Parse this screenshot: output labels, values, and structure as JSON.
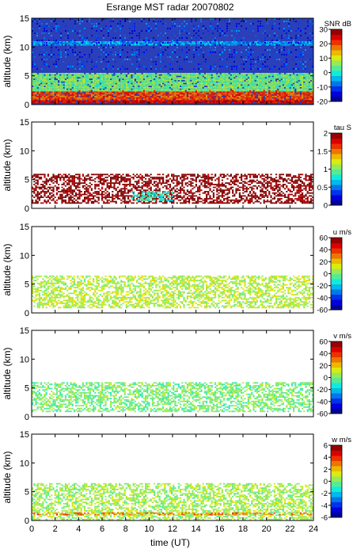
{
  "title": "Esrange MST radar 20070802",
  "xlabel": "time (UT)",
  "x_ticks": [
    0,
    2,
    4,
    6,
    8,
    10,
    12,
    14,
    16,
    18,
    20,
    22,
    24
  ],
  "chart_data": [
    {
      "type": "heatmap",
      "id": "snr",
      "title": "Esrange MST radar 20070802",
      "xlabel": "",
      "ylabel": "altitude (km)",
      "xlim": [
        0,
        24
      ],
      "ylim": [
        0,
        15
      ],
      "y_ticks": [
        0,
        5,
        10,
        15
      ],
      "colorbar_label": "SNR dB",
      "colorbar_range": [
        -20,
        30
      ],
      "colorbar_ticks": [
        -20,
        -10,
        0,
        10,
        20,
        30
      ],
      "background": "#2b3fb8",
      "features": [
        {
          "variable": "SNR",
          "altitude_km": [
            0.3,
            1.0
          ],
          "time_UT": [
            0,
            24
          ],
          "approx_value": 25
        },
        {
          "variable": "SNR",
          "altitude_km": [
            1.0,
            2.5
          ],
          "time_UT": [
            0,
            24
          ],
          "approx_value": 20
        },
        {
          "variable": "SNR",
          "altitude_km": [
            2.5,
            5.5
          ],
          "time_UT": [
            0,
            24
          ],
          "approx_value": 5
        },
        {
          "variable": "SNR",
          "altitude_km": [
            10.5,
            11.0
          ],
          "time_UT": [
            0,
            24
          ],
          "approx_value": -5
        }
      ]
    },
    {
      "type": "heatmap",
      "id": "tau",
      "xlabel": "",
      "ylabel": "altitude (km)",
      "xlim": [
        0,
        24
      ],
      "ylim": [
        0,
        15
      ],
      "y_ticks": [
        0,
        5,
        10,
        15
      ],
      "colorbar_label": "tau S",
      "colorbar_range": [
        0,
        2
      ],
      "colorbar_ticks": [
        0,
        0.5,
        1,
        1.5,
        2
      ],
      "background": "#ffffff",
      "features": [
        {
          "variable": "tau",
          "altitude_km": [
            1.0,
            6.0
          ],
          "time_UT": [
            0,
            24
          ],
          "approx_value": 2.0
        },
        {
          "variable": "tau",
          "altitude_km": [
            1.5,
            3.0
          ],
          "time_UT": [
            8.5,
            12
          ],
          "approx_value": 0.8
        }
      ]
    },
    {
      "type": "heatmap",
      "id": "u",
      "xlabel": "",
      "ylabel": "altitude (km)",
      "xlim": [
        0,
        24
      ],
      "ylim": [
        0,
        15
      ],
      "y_ticks": [
        0,
        5,
        10,
        15
      ],
      "colorbar_label": "u m/s",
      "colorbar_range": [
        -60,
        60
      ],
      "colorbar_ticks": [
        -60,
        -40,
        -20,
        0,
        20,
        40,
        60
      ],
      "background": "#ffffff",
      "features": [
        {
          "variable": "u",
          "altitude_km": [
            1.0,
            6.5
          ],
          "time_UT": [
            0,
            24
          ],
          "approx_value": 8
        }
      ]
    },
    {
      "type": "heatmap",
      "id": "v",
      "xlabel": "",
      "ylabel": "altitude (km)",
      "xlim": [
        0,
        24
      ],
      "ylim": [
        0,
        15
      ],
      "y_ticks": [
        0,
        5,
        10,
        15
      ],
      "colorbar_label": "v m/s",
      "colorbar_range": [
        -60,
        60
      ],
      "colorbar_ticks": [
        -60,
        -40,
        -20,
        0,
        20,
        40,
        60
      ],
      "background": "#ffffff",
      "features": [
        {
          "variable": "v",
          "altitude_km": [
            1.0,
            6.0
          ],
          "time_UT": [
            0,
            24
          ],
          "approx_value": 0
        }
      ]
    },
    {
      "type": "heatmap",
      "id": "w",
      "xlabel": "time (UT)",
      "ylabel": "altitude (km)",
      "xlim": [
        0,
        24
      ],
      "ylim": [
        0,
        15
      ],
      "y_ticks": [
        0,
        5,
        10,
        15
      ],
      "colorbar_label": "w m/s",
      "colorbar_range": [
        -6,
        6
      ],
      "colorbar_ticks": [
        -6,
        -4,
        -2,
        0,
        2,
        4,
        6
      ],
      "background": "#ffffff",
      "features": [
        {
          "variable": "w",
          "altitude_km": [
            0.3,
            6.5
          ],
          "time_UT": [
            0,
            24
          ],
          "approx_value": 0.5
        },
        {
          "variable": "w",
          "altitude_km": [
            1.1,
            1.4
          ],
          "time_UT": [
            0,
            24
          ],
          "approx_value": 3
        }
      ]
    }
  ]
}
